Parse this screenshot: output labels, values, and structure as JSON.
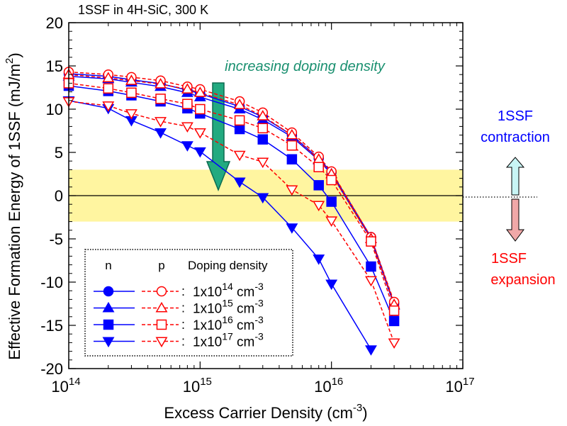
{
  "chart_data": {
    "type": "line",
    "title": "1SSF in 4H-SiC,  300 K",
    "x_label": {
      "text": "Excess Carrier Density (cm",
      "sup": "-3",
      "after": ")"
    },
    "y_label": {
      "text": "Effective Formation Energy of 1SSF (mJ/m",
      "sup": "2",
      "after": ")"
    },
    "log_x": true,
    "xlim": [
      100000000000000.0,
      1e+17
    ],
    "xticks": [
      {
        "value": 100000000000000.0,
        "label": "10",
        "exponent": "14"
      },
      {
        "value": 1000000000000000.0,
        "label": "10",
        "exponent": "15"
      },
      {
        "value": 1e+16,
        "label": "10",
        "exponent": "16"
      },
      {
        "value": 1e+17,
        "label": "10",
        "exponent": "17"
      }
    ],
    "ylim": [
      -20,
      20
    ],
    "yticks": [
      -20,
      -15,
      -10,
      -5,
      0,
      5,
      10,
      15,
      20
    ],
    "band": [
      -3,
      3
    ],
    "band_color": "#fff5a0",
    "x": [
      100000000000000.0,
      200000000000000.0,
      300000000000000.0,
      500000000000000.0,
      800000000000000.0,
      1000000000000000.0,
      2000000000000000.0,
      3000000000000000.0,
      5000000000000000.0,
      8000000000000000.0,
      1e+16,
      2e+16,
      3e+16
    ],
    "series": [
      {
        "name": "n",
        "color": "#0000ff",
        "marker": "circle",
        "filled": true,
        "dashed": false,
        "values": [
          14.1,
          13.8,
          13.4,
          12.95,
          12.2,
          11.8,
          10.3,
          9.1,
          7.0,
          4.3,
          2.7,
          -4.8,
          -12.5
        ]
      },
      {
        "name": "p",
        "color": "#ff0000",
        "marker": "circle",
        "filled": false,
        "dashed": true,
        "values": [
          14.3,
          14.0,
          13.7,
          13.3,
          12.6,
          12.3,
          10.9,
          9.6,
          7.3,
          4.5,
          2.8,
          -4.8,
          -12.3
        ]
      },
      {
        "name": "n",
        "color": "#0000ff",
        "marker": "triangle-up",
        "filled": true,
        "dashed": false,
        "values": [
          13.8,
          13.5,
          13.1,
          12.6,
          11.9,
          11.4,
          10.0,
          8.8,
          6.8,
          4.1,
          2.5,
          -5.0,
          -12.7
        ]
      },
      {
        "name": "p",
        "color": "#ff0000",
        "marker": "triangle-up",
        "filled": false,
        "dashed": true,
        "values": [
          14.0,
          13.6,
          13.3,
          12.9,
          12.3,
          11.9,
          10.5,
          9.2,
          7.0,
          4.2,
          2.5,
          -5.0,
          -12.6
        ]
      },
      {
        "name": "n",
        "color": "#0000ff",
        "marker": "square",
        "filled": true,
        "dashed": false,
        "values": [
          12.7,
          12.1,
          11.6,
          10.9,
          10.1,
          9.5,
          7.7,
          6.5,
          4.2,
          1.2,
          -0.7,
          -8.2,
          -14.5
        ]
      },
      {
        "name": "p",
        "color": "#ff0000",
        "marker": "square",
        "filled": false,
        "dashed": true,
        "values": [
          13.0,
          12.4,
          11.9,
          11.2,
          10.6,
          10.0,
          8.7,
          7.8,
          5.8,
          3.3,
          1.8,
          -5.3,
          -13.3
        ]
      },
      {
        "name": "n",
        "color": "#0000ff",
        "marker": "triangle-down",
        "filled": true,
        "dashed": false,
        "values": [
          11.0,
          10.1,
          8.7,
          7.3,
          5.8,
          5.1,
          1.6,
          -0.2,
          -3.7,
          -7.3,
          -10.2,
          -17.8,
          null
        ]
      },
      {
        "name": "p",
        "color": "#ff0000",
        "marker": "triangle-down",
        "filled": false,
        "dashed": true,
        "values": [
          10.9,
          10.4,
          9.5,
          8.6,
          8.0,
          7.3,
          4.7,
          3.9,
          0.7,
          -1.1,
          -2.9,
          -9.8,
          -17.0
        ]
      }
    ],
    "legend": {
      "header": "Doping density",
      "separator": ":",
      "rows": [
        {
          "text": "1x10",
          "exp": "14",
          "unit": " cm",
          "unit_exp": "-3"
        },
        {
          "text": "1x10",
          "exp": "15",
          "unit": " cm",
          "unit_exp": "-3"
        },
        {
          "text": "1x10",
          "exp": "16",
          "unit": " cm",
          "unit_exp": "-3"
        },
        {
          "text": "1x10",
          "exp": "17",
          "unit": " cm",
          "unit_exp": "-3"
        }
      ]
    },
    "annotations": {
      "arrow_text": "increasing doping density",
      "contraction": [
        "1SSF",
        "contraction"
      ],
      "expansion": [
        "1SSF",
        "expansion"
      ]
    }
  }
}
